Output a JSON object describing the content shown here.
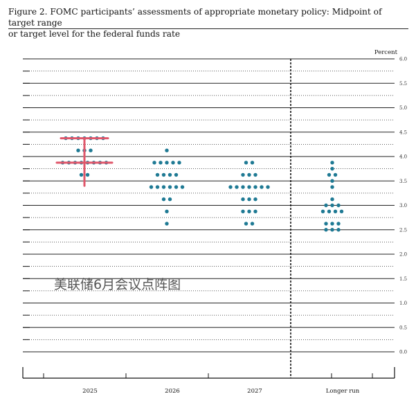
{
  "caption": {
    "line1": "Figure 2.  FOMC participants’ assessments of appropriate monetary policy:  Midpoint of target range",
    "line2": "or target level for the federal funds rate"
  },
  "watermark": "美联储6月会议点阵图",
  "colors": {
    "dot": "#1f7a94",
    "range_marker": "#e0566a",
    "axis": "#111111",
    "grid": "#222222"
  },
  "chart_data": {
    "type": "scatter",
    "ylabel": "Percent",
    "ylim": [
      0,
      6
    ],
    "yticks": [
      "6.0",
      "5.5",
      "5.0",
      "4.5",
      "4.0",
      "3.5",
      "3.0",
      "2.5",
      "2.0",
      "1.5",
      "1.0",
      "0.5",
      "0.0"
    ],
    "categories": [
      "2025",
      "2026",
      "2027",
      "Longer run"
    ],
    "grid": "dotted every 0.25, solid every 0.5",
    "dots": {
      "2025": [
        4.375,
        4.375,
        4.375,
        4.375,
        4.375,
        4.375,
        4.375,
        4.125,
        4.125,
        4.125,
        3.875,
        3.875,
        3.875,
        3.875,
        3.875,
        3.875,
        3.875,
        3.875,
        3.625,
        3.625
      ],
      "2026": [
        4.125,
        3.875,
        3.875,
        3.875,
        3.875,
        3.875,
        3.625,
        3.625,
        3.625,
        3.625,
        3.375,
        3.375,
        3.375,
        3.375,
        3.375,
        3.375,
        3.125,
        3.125,
        2.875,
        2.625
      ],
      "2027": [
        3.875,
        3.875,
        3.625,
        3.625,
        3.625,
        3.375,
        3.375,
        3.375,
        3.375,
        3.375,
        3.375,
        3.375,
        3.125,
        3.125,
        3.125,
        2.875,
        2.875,
        2.875,
        2.625,
        2.625
      ],
      "Longer run": [
        3.875,
        3.75,
        3.625,
        3.625,
        3.5,
        3.375,
        3.125,
        3.0,
        3.0,
        3.0,
        2.875,
        2.875,
        2.875,
        2.875,
        2.625,
        2.625,
        2.625,
        2.5,
        2.5,
        2.5
      ]
    },
    "annotation": {
      "category": "2025",
      "upper": 4.375,
      "lower": 3.875,
      "stem_bottom": 3.4
    }
  }
}
